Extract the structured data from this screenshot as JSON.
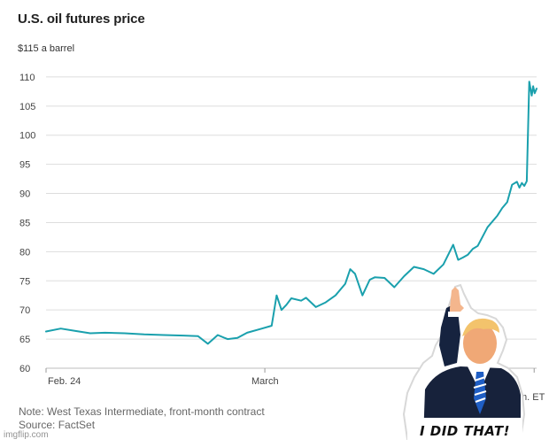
{
  "chart_data": {
    "type": "line",
    "title": "U.S. oil futures price",
    "ylabel": "$115 a barrel",
    "ylim": [
      60,
      115
    ],
    "yticks": [
      "60",
      "65",
      "70",
      "75",
      "80",
      "85",
      "90",
      "95",
      "100",
      "105",
      "110"
    ],
    "xlabels": [
      "Feb. 24",
      "March"
    ],
    "xlabel_partial": "m. ET",
    "grid": true,
    "colors": {
      "line": "#1aa0ad",
      "grid": "#dddddd",
      "axis": "#999999"
    },
    "series": [
      {
        "x": [
          0,
          0.03,
          0.06,
          0.09,
          0.12,
          0.16,
          0.2,
          0.24,
          0.28,
          0.31,
          0.33,
          0.35,
          0.37,
          0.39,
          0.41,
          0.44,
          0.46,
          0.47,
          0.48,
          0.49,
          0.5,
          0.52,
          0.53,
          0.55,
          0.57,
          0.59,
          0.61,
          0.62,
          0.63,
          0.645,
          0.66,
          0.67,
          0.69,
          0.71,
          0.73,
          0.75,
          0.77,
          0.79,
          0.81,
          0.83,
          0.84,
          0.85,
          0.86,
          0.87,
          0.88,
          0.9,
          0.92,
          0.93,
          0.94,
          0.95,
          0.96,
          0.965,
          0.97,
          0.975,
          0.98,
          0.985,
          0.99,
          0.993,
          0.996,
          1.0
        ],
        "values": [
          66.3,
          66.8,
          66.4,
          66.0,
          66.1,
          66.0,
          65.8,
          65.7,
          65.6,
          65.5,
          64.2,
          65.7,
          65.0,
          65.2,
          66.1,
          66.8,
          67.3,
          72.5,
          70.0,
          70.9,
          72.0,
          71.6,
          72.1,
          70.5,
          71.3,
          72.5,
          74.5,
          77.0,
          76.2,
          72.5,
          75.2,
          75.6,
          75.5,
          73.9,
          75.8,
          77.4,
          77.0,
          76.2,
          77.8,
          81.2,
          78.6,
          79.0,
          79.5,
          80.5,
          81.0,
          84.2,
          86.2,
          87.5,
          88.5,
          91.5,
          92.0,
          91.0,
          91.8,
          91.3,
          92.1,
          109.2,
          106.8,
          108.4,
          107.2,
          108.0
        ]
      }
    ]
  },
  "notes": {
    "note": "Note: West Texas Intermediate, front-month contract",
    "source": "Source: FactSet"
  },
  "meme": {
    "caption": "I DID THAT!",
    "watermark": "imgflip.com"
  }
}
